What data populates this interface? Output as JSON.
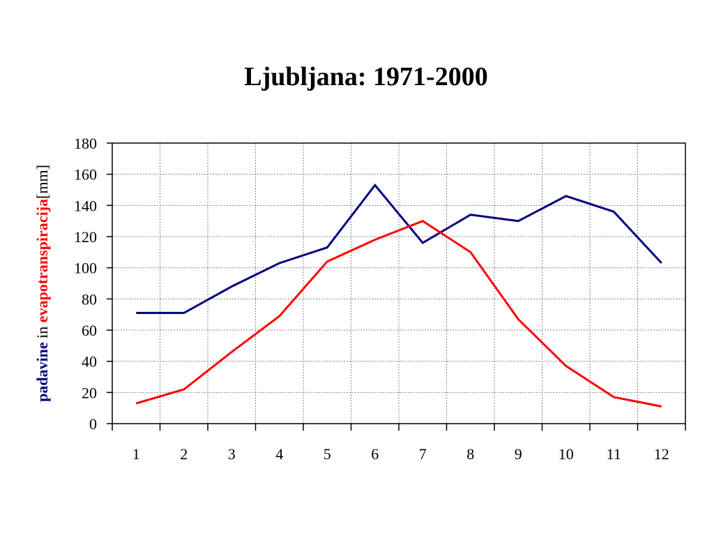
{
  "chart_data": {
    "type": "line",
    "title": "Ljubljana: 1971-2000",
    "ylabel_parts": [
      {
        "text": "padavine",
        "color": "#000080",
        "bold": true
      },
      {
        "text": " in ",
        "color": "#000000",
        "bold": false
      },
      {
        "text": "evapotranspiracija",
        "color": "#ff0000",
        "bold": true
      },
      {
        "text": "[mm]",
        "color": "#000000",
        "bold": false
      }
    ],
    "categories": [
      "1",
      "2",
      "3",
      "4",
      "5",
      "6",
      "7",
      "8",
      "9",
      "10",
      "11",
      "12"
    ],
    "ylim": [
      0,
      180
    ],
    "yticks": [
      0,
      20,
      40,
      60,
      80,
      100,
      120,
      140,
      160,
      180
    ],
    "grid": true,
    "series": [
      {
        "color": "#000080",
        "values": [
          71,
          71,
          88,
          103,
          113,
          153,
          116,
          134,
          130,
          146,
          136,
          103
        ]
      },
      {
        "color": "#ff0000",
        "values": [
          13,
          22,
          46,
          69,
          104,
          118,
          130,
          110,
          67,
          37,
          17,
          11
        ]
      }
    ]
  }
}
